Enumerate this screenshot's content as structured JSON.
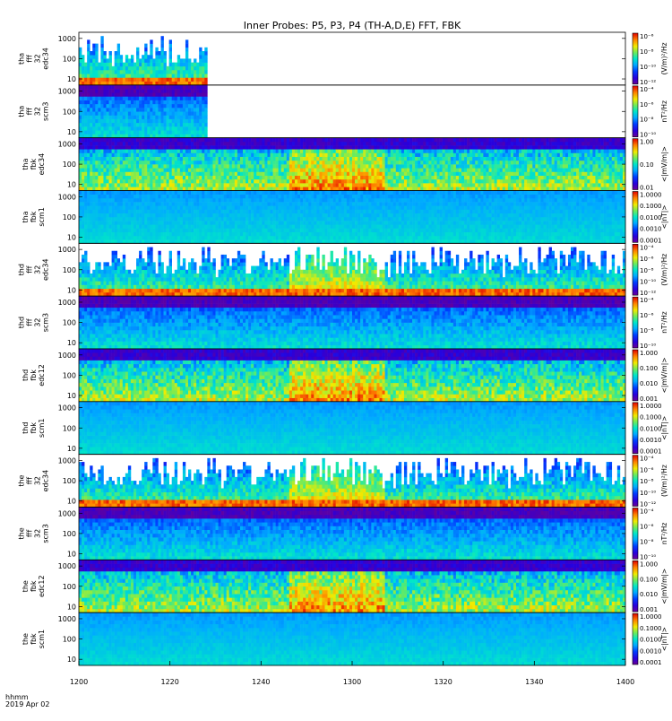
{
  "title": "Inner Probes: P5, P3, P4 (TH-A,D,E) FFT, FBK",
  "time_axis": {
    "label_line1": "hhmm",
    "label_line2": "2019 Apr 02",
    "ticks": [
      "1200",
      "1220",
      "1240",
      "1300",
      "1320",
      "1340",
      "1400"
    ]
  },
  "chart_data": [
    {
      "type": "heatmap",
      "panel_label": [
        "tha",
        "fff",
        "32",
        "edc34"
      ],
      "y_ticks": [
        "1000",
        "100",
        "10"
      ],
      "y_log": true,
      "x_range": [
        "1200",
        "1400"
      ],
      "data_coverage": [
        "1200",
        "1228"
      ],
      "colorbar_ticks": [
        "10⁻⁶",
        "10⁻⁸",
        "10⁻¹⁰",
        "10⁻¹²"
      ],
      "colorbar_label": "(V/m)²/Hz",
      "style": "fff"
    },
    {
      "type": "heatmap",
      "panel_label": [
        "tha",
        "fff",
        "32",
        "scm3"
      ],
      "y_ticks": [
        "1000",
        "100",
        "10"
      ],
      "y_log": true,
      "x_range": [
        "1200",
        "1400"
      ],
      "data_coverage": [
        "1200",
        "1228"
      ],
      "colorbar_ticks": [
        "10⁻⁴",
        "10⁻⁶",
        "10⁻⁸",
        "10⁻¹⁰"
      ],
      "colorbar_label": "nT²/Hz",
      "style": "fff-scm"
    },
    {
      "type": "heatmap",
      "panel_label": [
        "tha",
        "fbk",
        "edc34"
      ],
      "y_ticks": [
        "1000",
        "100",
        "10"
      ],
      "y_log": true,
      "x_range": [
        "1200",
        "1400"
      ],
      "data_coverage": [
        "1200",
        "1400"
      ],
      "colorbar_ticks": [
        "1.00",
        "0.10",
        "0.01"
      ],
      "colorbar_label": "<|mV/m|>",
      "style": "fbk-edc"
    },
    {
      "type": "heatmap",
      "panel_label": [
        "tha",
        "fbk",
        "scm1"
      ],
      "y_ticks": [
        "1000",
        "100",
        "10"
      ],
      "y_log": true,
      "x_range": [
        "1200",
        "1400"
      ],
      "data_coverage": [
        "1200",
        "1400"
      ],
      "colorbar_ticks": [
        "1.0000",
        "0.1000",
        "0.0100",
        "0.0010",
        "0.0001"
      ],
      "colorbar_label": "<|nT|>",
      "style": "fbk-scm"
    },
    {
      "type": "heatmap",
      "panel_label": [
        "thd",
        "fff",
        "32",
        "edc34"
      ],
      "y_ticks": [
        "1000",
        "100",
        "10"
      ],
      "y_log": true,
      "x_range": [
        "1200",
        "1400"
      ],
      "data_coverage": [
        "1200",
        "1400"
      ],
      "colorbar_ticks": [
        "10⁻⁴",
        "10⁻⁶",
        "10⁻⁸",
        "10⁻¹⁰",
        "10⁻¹²"
      ],
      "colorbar_label": "(V/m)²/Hz",
      "style": "fff"
    },
    {
      "type": "heatmap",
      "panel_label": [
        "thd",
        "fff",
        "32",
        "scm3"
      ],
      "y_ticks": [
        "1000",
        "100",
        "10"
      ],
      "y_log": true,
      "x_range": [
        "1200",
        "1400"
      ],
      "data_coverage": [
        "1200",
        "1400"
      ],
      "colorbar_ticks": [
        "10⁻⁴",
        "10⁻⁶",
        "10⁻⁸",
        "10⁻¹⁰"
      ],
      "colorbar_label": "nT²/Hz",
      "style": "fff-scm"
    },
    {
      "type": "heatmap",
      "panel_label": [
        "thd",
        "fbk",
        "edc12"
      ],
      "y_ticks": [
        "1000",
        "100",
        "10"
      ],
      "y_log": true,
      "x_range": [
        "1200",
        "1400"
      ],
      "data_coverage": [
        "1200",
        "1400"
      ],
      "colorbar_ticks": [
        "1.000",
        "0.100",
        "0.010",
        "0.001"
      ],
      "colorbar_label": "<|mV/m|>",
      "style": "fbk-edc"
    },
    {
      "type": "heatmap",
      "panel_label": [
        "thd",
        "fbk",
        "scm1"
      ],
      "y_ticks": [
        "1000",
        "100",
        "10"
      ],
      "y_log": true,
      "x_range": [
        "1200",
        "1400"
      ],
      "data_coverage": [
        "1200",
        "1400"
      ],
      "colorbar_ticks": [
        "1.0000",
        "0.1000",
        "0.0100",
        "0.0010",
        "0.0001"
      ],
      "colorbar_label": "<|nT|>",
      "style": "fbk-scm"
    },
    {
      "type": "heatmap",
      "panel_label": [
        "the",
        "fff",
        "32",
        "edc34"
      ],
      "y_ticks": [
        "1000",
        "100",
        "10"
      ],
      "y_log": true,
      "x_range": [
        "1200",
        "1400"
      ],
      "data_coverage": [
        "1200",
        "1400"
      ],
      "colorbar_ticks": [
        "10⁻⁴",
        "10⁻⁶",
        "10⁻⁸",
        "10⁻¹⁰",
        "10⁻¹²"
      ],
      "colorbar_label": "(V/m)²/Hz",
      "style": "fff"
    },
    {
      "type": "heatmap",
      "panel_label": [
        "the",
        "fff",
        "32",
        "scm3"
      ],
      "y_ticks": [
        "1000",
        "100",
        "10"
      ],
      "y_log": true,
      "x_range": [
        "1200",
        "1400"
      ],
      "data_coverage": [
        "1200",
        "1400"
      ],
      "colorbar_ticks": [
        "10⁻⁴",
        "10⁻⁶",
        "10⁻⁸",
        "10⁻¹⁰"
      ],
      "colorbar_label": "nT²/Hz",
      "style": "fff-scm"
    },
    {
      "type": "heatmap",
      "panel_label": [
        "the",
        "fbk",
        "edc12"
      ],
      "y_ticks": [
        "1000",
        "100",
        "10"
      ],
      "y_log": true,
      "x_range": [
        "1200",
        "1400"
      ],
      "data_coverage": [
        "1200",
        "1400"
      ],
      "colorbar_ticks": [
        "1.000",
        "0.100",
        "0.010",
        "0.001"
      ],
      "colorbar_label": "<|mV/m|>",
      "style": "fbk-edc"
    },
    {
      "type": "heatmap",
      "panel_label": [
        "the",
        "fbk",
        "scm1"
      ],
      "y_ticks": [
        "1000",
        "100",
        "10"
      ],
      "y_log": true,
      "x_range": [
        "1200",
        "1400"
      ],
      "data_coverage": [
        "1200",
        "1400"
      ],
      "colorbar_ticks": [
        "1.0000",
        "0.1000",
        "0.0100",
        "0.0010",
        "0.0001"
      ],
      "colorbar_label": "<|nT|>",
      "style": "fbk-scm"
    }
  ]
}
